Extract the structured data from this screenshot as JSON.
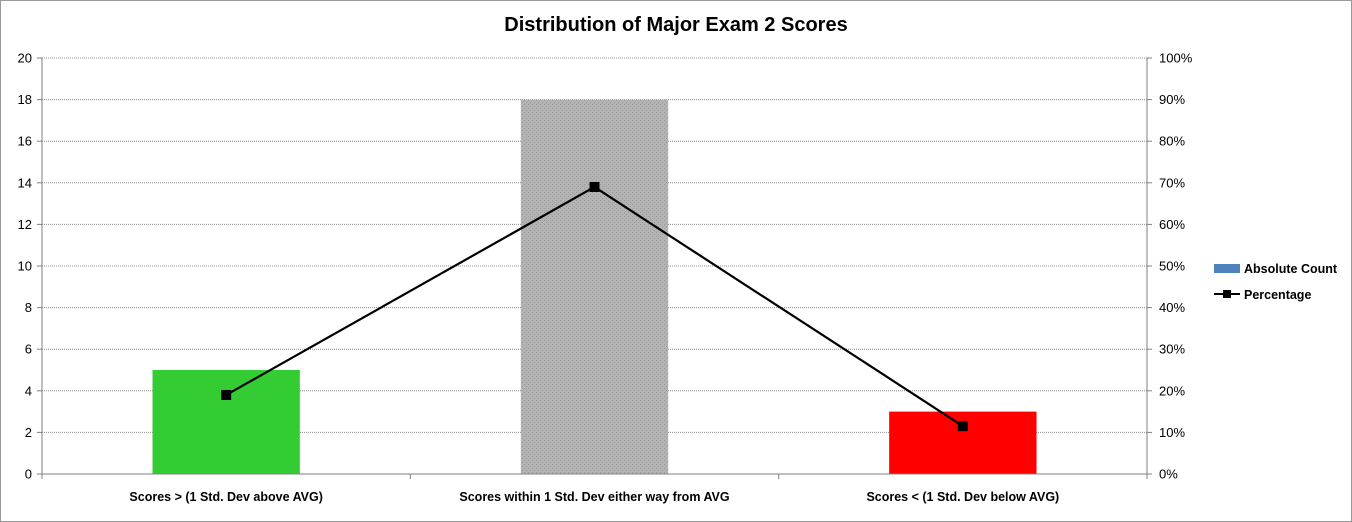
{
  "chart_data": {
    "type": "bar",
    "title": "Distribution of Major Exam 2 Scores",
    "categories": [
      "Scores > (1 Std. Dev above AVG)",
      "Scores within 1 Std. Dev either way from AVG",
      "Scores < (1 Std. Dev below AVG)"
    ],
    "series": [
      {
        "name": "Absolute Count",
        "type": "bar",
        "axis": "left",
        "values": [
          5,
          18,
          3
        ],
        "colors": [
          "#33cc33",
          "#b7b7b7",
          "#ff0000"
        ],
        "legend_color": "#4f81bd"
      },
      {
        "name": "Percentage",
        "type": "line",
        "axis": "right",
        "values": [
          0.19,
          0.69,
          0.115
        ],
        "color": "#000000"
      }
    ],
    "ylim": [
      0,
      20
    ],
    "yticks": [
      0,
      2,
      4,
      6,
      8,
      10,
      12,
      14,
      16,
      18,
      20
    ],
    "y2lim": [
      0,
      1
    ],
    "y2ticks": [
      "0%",
      "10%",
      "20%",
      "30%",
      "40%",
      "50%",
      "60%",
      "70%",
      "80%",
      "90%",
      "100%"
    ],
    "grid": true,
    "legend_position": "right"
  }
}
